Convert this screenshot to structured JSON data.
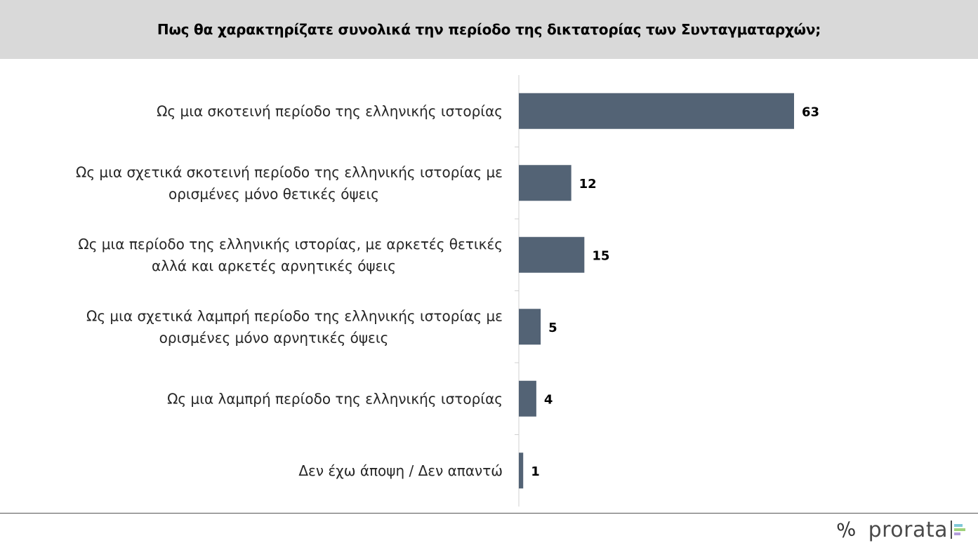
{
  "header": {
    "title": "Πως θα χαρακτηρίζατε συνολικά την περίοδο της δικτατορίας των Συνταγματαρχών;"
  },
  "chart_data": {
    "type": "bar",
    "orientation": "horizontal",
    "title": "Πως θα χαρακτηρίζατε συνολικά την περίοδο της δικτατορίας των Συνταγματαρχών;",
    "categories": [
      [
        "Ως μια σκοτεινή περίοδο της ελληνικής ιστορίας"
      ],
      [
        "Ως μια σχετικά σκοτεινή περίοδο της ελληνικής ιστορίας με",
        "ορισμένες μόνο θετικές όψεις"
      ],
      [
        "Ως μια περίοδο της ελληνικής ιστορίας, με αρκετές θετικές",
        "αλλά και αρκετές αρνητικές όψεις"
      ],
      [
        "Ως μια σχετικά λαμπρή περίοδο της ελληνικής ιστορίας με",
        "ορισμένες μόνο αρνητικές όψεις"
      ],
      [
        "Ως μια λαμπρή περίοδο της ελληνικής ιστορίας"
      ],
      [
        "Δεν έχω άποψη / Δεν απαντώ"
      ]
    ],
    "values": [
      63,
      12,
      15,
      5,
      4,
      1
    ],
    "value_labels": [
      "63",
      "12",
      "15",
      "5",
      "4",
      "1"
    ],
    "xlim": [
      0,
      100
    ],
    "bar_color": "#536375",
    "grid": false,
    "legend": "none"
  },
  "branding": {
    "percent_symbol": "%",
    "name": "prorata",
    "bar_colors": [
      "#7fc8d8",
      "#a0d27b",
      "#b39ddb"
    ]
  },
  "colors": {
    "header_bg": "#d9d9d9",
    "bar": "#536375",
    "axis": "#d0d0d0"
  }
}
